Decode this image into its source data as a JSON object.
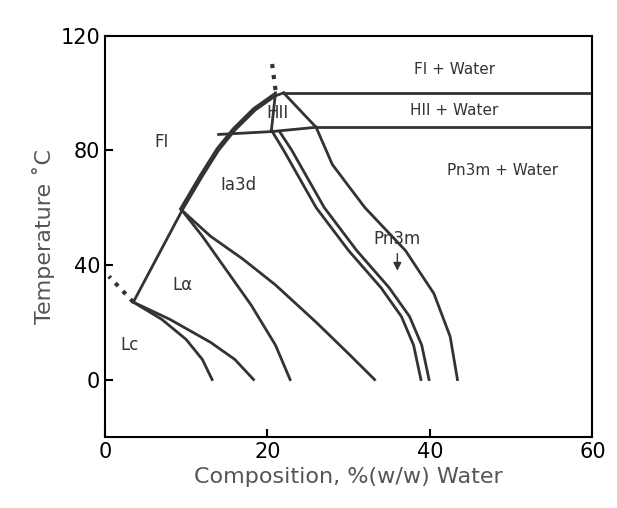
{
  "chart_data": {
    "type": "line",
    "xlabel": "Composition, %(w/w) Water",
    "ylabel": "Temperature ˚C",
    "xlim": [
      0,
      60
    ],
    "ylim": [
      -20,
      120
    ],
    "xticks": [
      0,
      20,
      40,
      60
    ],
    "yticks": [
      0,
      40,
      80,
      120
    ],
    "grid": false,
    "color": "#333333",
    "series": [
      {
        "x": [
          3.5,
          6.5,
          9.5
        ],
        "values": [
          27,
          43,
          59
        ]
      },
      {
        "x": [
          9.5,
          12,
          14,
          16,
          18.5,
          21,
          22
        ],
        "values": [
          59,
          71,
          80,
          87,
          94,
          99,
          100
        ]
      },
      {
        "x": [
          9.3,
          11.8,
          13.8,
          15.8,
          18.3,
          20.8
        ],
        "values": [
          59.5,
          71.5,
          80.5,
          87.5,
          94.5,
          99.5
        ]
      },
      {
        "x": [
          22,
          60
        ],
        "values": [
          100,
          100
        ]
      },
      {
        "x": [
          26,
          60
        ],
        "values": [
          88,
          88
        ]
      },
      {
        "x": [
          14,
          20.5,
          26
        ],
        "values": [
          85.5,
          86.5,
          88
        ]
      },
      {
        "x": [
          21,
          20.5
        ],
        "values": [
          100,
          87
        ]
      },
      {
        "x": [
          22,
          24,
          26
        ],
        "values": [
          100,
          94,
          88
        ]
      },
      {
        "x": [
          20.5,
          22,
          24,
          26,
          30,
          34,
          36.5,
          38,
          38.9
        ],
        "values": [
          87,
          80,
          70,
          60,
          45,
          32,
          22,
          12,
          0
        ]
      },
      {
        "x": [
          21.5,
          23,
          25,
          27,
          31,
          35,
          37.5,
          39,
          39.9
        ],
        "values": [
          86.5,
          80,
          70,
          60,
          45,
          32,
          22,
          12,
          0
        ]
      },
      {
        "x": [
          26,
          28,
          32,
          37,
          40.5,
          42.5,
          43.4
        ],
        "values": [
          88,
          75,
          60,
          45,
          30,
          15,
          0
        ]
      },
      {
        "x": [
          9.5,
          12,
          15,
          18,
          21,
          22.8
        ],
        "values": [
          59,
          50,
          38,
          26,
          12,
          0
        ]
      },
      {
        "x": [
          9.5,
          13,
          17,
          21,
          26,
          30,
          33.2
        ],
        "values": [
          59,
          50,
          42,
          33,
          20,
          9,
          0
        ]
      },
      {
        "x": [
          3.5,
          7,
          10,
          12,
          13.2
        ],
        "values": [
          27,
          21,
          14,
          7,
          0
        ]
      },
      {
        "x": [
          3.5,
          8,
          13,
          16,
          18.3
        ],
        "values": [
          27,
          21,
          13,
          7,
          0
        ]
      },
      {
        "x": [
          21,
          20.5
        ],
        "values": [
          101,
          112
        ],
        "line_style": "dotted"
      },
      {
        "x": [
          3.5,
          0.5
        ],
        "values": [
          27,
          36
        ],
        "line_style": "dotted"
      }
    ],
    "annotations": [
      {
        "text": "FI + Water",
        "x": 43,
        "y": 108
      },
      {
        "text": "HII + Water",
        "x": 43,
        "y": 94
      },
      {
        "text": "Pn3m + Water",
        "x": 49,
        "y": 73
      },
      {
        "text": "FI",
        "x": 7,
        "y": 83
      },
      {
        "text": "HII",
        "x": 21.3,
        "y": 93
      },
      {
        "text": "Ia3d",
        "x": 16.5,
        "y": 68
      },
      {
        "text": "Lα",
        "x": 9.5,
        "y": 33
      },
      {
        "text": "Lc",
        "x": 3,
        "y": 12
      },
      {
        "text": "Pn3m",
        "x": 36,
        "y": 49,
        "arrow_x": 36,
        "arrow_y": 37
      }
    ]
  }
}
